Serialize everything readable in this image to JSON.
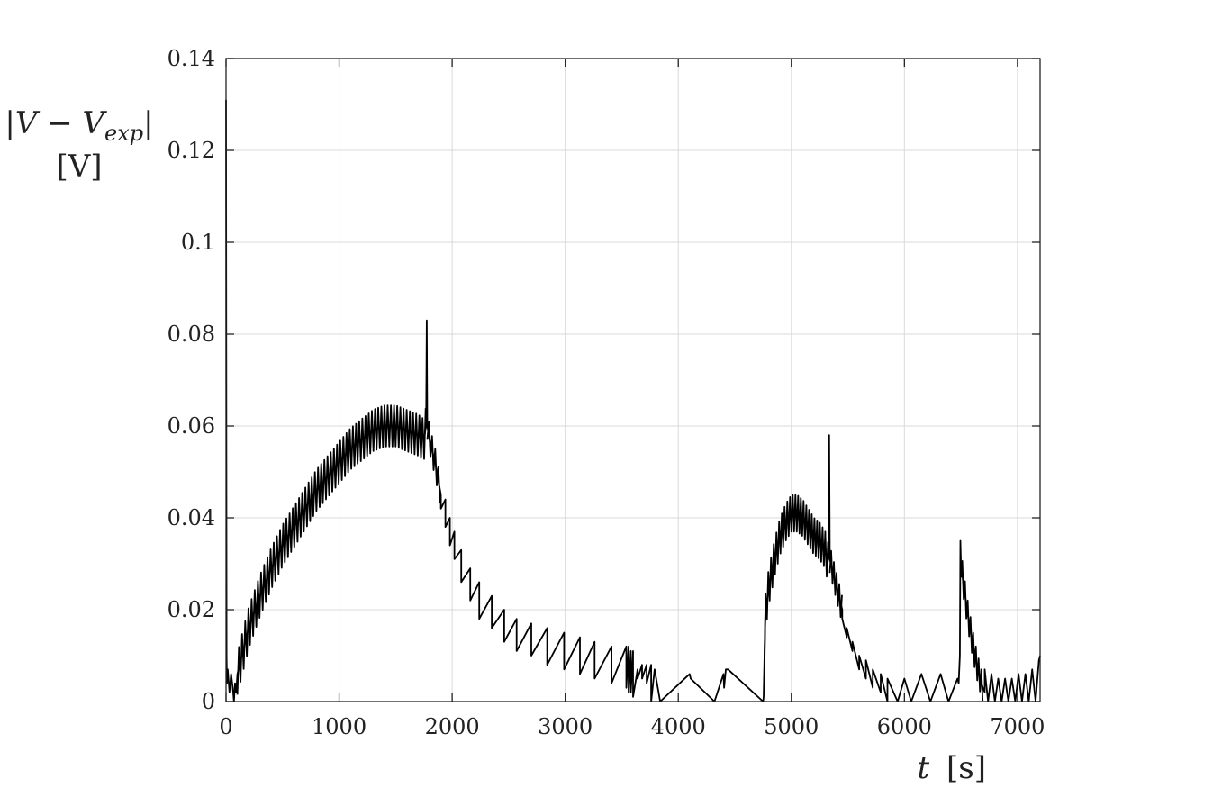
{
  "chart_data": {
    "type": "line",
    "title": "",
    "xlabel_var": "t",
    "xlabel_unit": "[s]",
    "ylabel_line1": "|V − V",
    "ylabel_sub": "exp",
    "ylabel_close": "|",
    "ylabel_line2": "[V]",
    "xlim": [
      0,
      7200
    ],
    "ylim": [
      0,
      0.14
    ],
    "xticks": [
      0,
      1000,
      2000,
      3000,
      4000,
      5000,
      6000,
      7000
    ],
    "xtick_labels": [
      "0",
      "1000",
      "2000",
      "3000",
      "4000",
      "5000",
      "6000",
      "7000"
    ],
    "yticks": [
      0,
      0.02,
      0.04,
      0.06,
      0.08,
      0.1,
      0.12,
      0.14
    ],
    "ytick_labels": [
      "0",
      "0.02",
      "0.04",
      "0.06",
      "0.08",
      "0.1",
      "0.12",
      "0.14"
    ],
    "grid": true,
    "legend": "none",
    "line_color": "#000000",
    "series": [
      {
        "x": [
          0,
          5,
          8,
          15,
          30,
          45,
          60,
          70,
          80,
          90,
          100,
          130,
          150,
          200,
          300,
          400,
          500,
          600,
          700,
          800,
          900,
          1000,
          1100,
          1200,
          1300,
          1400,
          1500,
          1600,
          1700,
          1750,
          1770,
          1775,
          1780,
          1800,
          1850,
          1900,
          1900,
          1940,
          1940,
          1980,
          1980,
          2020,
          2020,
          2080,
          2080,
          2160,
          2160,
          2240,
          2240,
          2350,
          2350,
          2460,
          2460,
          2570,
          2570,
          2700,
          2700,
          2840,
          2840,
          2990,
          2990,
          3130,
          3130,
          3260,
          3260,
          3410,
          3410,
          3540,
          3540,
          3560,
          3560,
          3580,
          3580,
          3600,
          3600,
          3640,
          3640,
          3680,
          3680,
          3720,
          3720,
          3760,
          3760,
          3790,
          3840,
          4100,
          4110,
          4320,
          4400,
          4405,
          4420,
          4440,
          4750,
          4755,
          4770,
          4800,
          4850,
          4900,
          4950,
          5000,
          5050,
          5100,
          5150,
          5200,
          5250,
          5300,
          5320,
          5330,
          5335,
          5340,
          5360,
          5400,
          5450,
          5450,
          5490,
          5490,
          5540,
          5540,
          5600,
          5600,
          5660,
          5660,
          5720,
          5720,
          5790,
          5790,
          5850,
          5850,
          5940,
          6000,
          6060,
          6150,
          6230,
          6320,
          6390,
          6470,
          6480,
          6490,
          6495,
          6500,
          6520,
          6560,
          6600,
          6640,
          6680,
          6710,
          6710,
          6740,
          6770,
          6800,
          6830,
          6860,
          6890,
          6920,
          6950,
          6980,
          7010,
          7040,
          7070,
          7100,
          7130,
          7160,
          7190,
          7200
        ],
        "y": [
          0.131,
          0.01,
          0.004,
          0.007,
          0.002,
          0.006,
          0.003,
          0.0,
          0.004,
          0.002,
          0.006,
          0.009,
          0.011,
          0.016,
          0.023,
          0.029,
          0.034,
          0.038,
          0.042,
          0.046,
          0.049,
          0.052,
          0.055,
          0.057,
          0.059,
          0.06,
          0.06,
          0.059,
          0.058,
          0.057,
          0.06,
          0.083,
          0.06,
          0.057,
          0.052,
          0.045,
          0.042,
          0.044,
          0.038,
          0.04,
          0.034,
          0.037,
          0.031,
          0.033,
          0.026,
          0.029,
          0.022,
          0.026,
          0.018,
          0.023,
          0.016,
          0.02,
          0.013,
          0.018,
          0.011,
          0.017,
          0.01,
          0.016,
          0.008,
          0.015,
          0.007,
          0.014,
          0.006,
          0.013,
          0.005,
          0.012,
          0.004,
          0.012,
          0.003,
          0.012,
          0.002,
          0.011,
          0.002,
          0.011,
          0.001,
          0.007,
          0.005,
          0.008,
          0.005,
          0.008,
          0.004,
          0.008,
          0.0,
          0.007,
          0.0,
          0.006,
          0.005,
          0.0,
          0.006,
          0.003,
          0.007,
          0.007,
          0.0,
          0.001,
          0.019,
          0.025,
          0.031,
          0.036,
          0.039,
          0.041,
          0.041,
          0.04,
          0.038,
          0.036,
          0.035,
          0.033,
          0.03,
          0.032,
          0.058,
          0.031,
          0.029,
          0.025,
          0.02,
          0.018,
          0.014,
          0.016,
          0.011,
          0.013,
          0.007,
          0.01,
          0.005,
          0.009,
          0.003,
          0.007,
          0.002,
          0.006,
          0.0,
          0.005,
          0.0,
          0.005,
          0.0,
          0.006,
          0.0,
          0.006,
          0.0,
          0.005,
          0.004,
          0.01,
          0.035,
          0.03,
          0.026,
          0.019,
          0.013,
          0.008,
          0.004,
          0.002,
          0.007,
          0.0,
          0.006,
          0.0,
          0.005,
          0.0,
          0.005,
          0.0,
          0.005,
          0.0,
          0.006,
          0.0,
          0.006,
          0.0,
          0.007,
          0.0,
          0.009,
          0.01
        ]
      }
    ]
  }
}
